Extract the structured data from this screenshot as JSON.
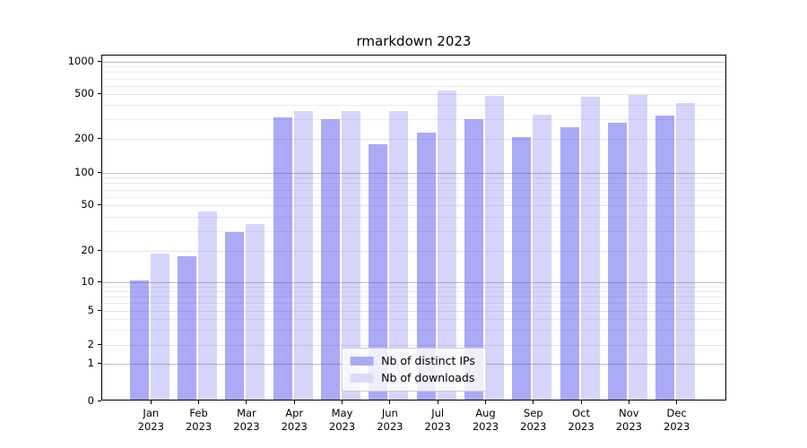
{
  "chart_data": {
    "type": "bar",
    "title": "rmarkdown 2023",
    "x_months": [
      "Jan",
      "Feb",
      "Mar",
      "Apr",
      "May",
      "Jun",
      "Jul",
      "Aug",
      "Sep",
      "Oct",
      "Nov",
      "Dec"
    ],
    "x_year": "2023",
    "series": [
      {
        "name": "Nb of distinct IPs",
        "color": "rgba(66,66,235,0.45)",
        "solid_color": "#aaaaf6",
        "values": [
          10,
          17,
          28,
          300,
          290,
          175,
          220,
          290,
          200,
          245,
          270,
          310
        ]
      },
      {
        "name": "Nb of downloads",
        "color": "rgba(66,66,235,0.22)",
        "solid_color": "#d9dbfa",
        "values": [
          18,
          43,
          33,
          340,
          345,
          340,
          520,
          465,
          320,
          460,
          480,
          405
        ]
      }
    ],
    "yscale": "pseudo-log",
    "yticks": [
      0,
      1,
      2,
      5,
      10,
      20,
      50,
      100,
      200,
      500,
      1000
    ],
    "major_gridline_ticks": [
      1,
      10,
      100,
      1000
    ],
    "minor_gridlines": [
      3,
      4,
      6,
      7,
      8,
      9,
      30,
      40,
      60,
      70,
      80,
      90,
      300,
      400,
      600,
      700,
      800,
      900
    ],
    "ylim": [
      0,
      1135
    ],
    "grid": true,
    "legend_position": "lower center",
    "colors": {
      "axis": "#000000",
      "grid_major": "#bdbdbd",
      "grid_minor": "#ececec",
      "background": "#ffffff"
    }
  }
}
